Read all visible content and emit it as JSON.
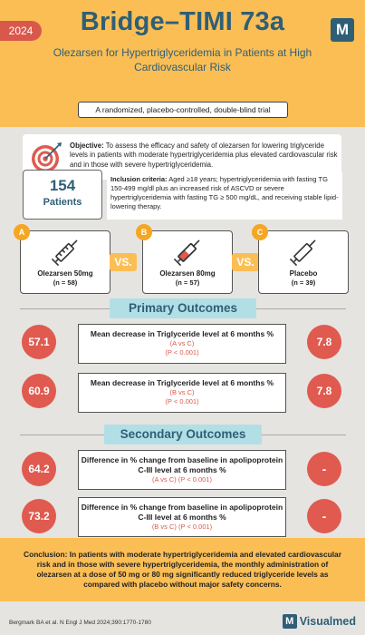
{
  "header": {
    "year": "2024",
    "title": "Bridge–TIMI 73a",
    "subtitle": "Olezarsen for Hypertriglyceridemia in Patients at High Cardiovascular Risk",
    "trial_design": "A randomized, placebo-controlled, double-blind trial",
    "logo_letter": "M"
  },
  "objective": {
    "label": "Objective:",
    "text": "To assess the efficacy and safety of olezarsen for lowering triglyceride levels in patients with moderate hypertriglyceridemia plus elevated cardiovascular risk and in those with severe hypertriglyceridemia.",
    "icon": "target-icon"
  },
  "patients": {
    "count": "154",
    "label": "Patients"
  },
  "inclusion": {
    "label": "Inclusion criteria:",
    "text": "Aged ≥18 years; hypertriglyceridemia with fasting TG 150-499 mg/dl plus an increased risk of ASCVD or severe hypertriglyceridemia with fasting TG ≥ 500 mg/dL, and receiving stable lipid-lowering therapy."
  },
  "arms": [
    {
      "badge": "A",
      "label": "Olezarsen 50mg",
      "n": "(n = 58)",
      "icon": "syringe-icon"
    },
    {
      "badge": "B",
      "label": "Olezarsen 80mg",
      "n": "(n = 57)",
      "icon": "syringe-icon"
    },
    {
      "badge": "C",
      "label": "Placebo",
      "n": "(n = 39)",
      "icon": "placebo-syringe-icon"
    }
  ],
  "vs_label": "VS.",
  "primary": {
    "heading": "Primary Outcomes",
    "rows": [
      {
        "left": "57.1",
        "title": "Mean decrease in Triglyceride level at 6 months %",
        "comparison": "(A vs C)",
        "p": "(P < 0.001)",
        "right": "7.8"
      },
      {
        "left": "60.9",
        "title": "Mean decrease in Triglyceride level at 6 months %",
        "comparison": "(B vs C)",
        "p": "(P < 0.001)",
        "right": "7.8"
      }
    ]
  },
  "secondary": {
    "heading": "Secondary Outcomes",
    "rows": [
      {
        "left": "64.2",
        "title": "Difference in % change from baseline in apolipoprotein C-III level at 6 months %",
        "comparison": "(A vs C)",
        "p": "(P < 0.001)",
        "right": "-"
      },
      {
        "left": "73.2",
        "title": "Difference in % change from baseline in apolipoprotein C-III level at 6 months %",
        "comparison": "(B vs C)",
        "p": "(P < 0.001)",
        "right": "-"
      }
    ]
  },
  "conclusion": {
    "label": "Conclusion:",
    "text": "In patients with moderate hypertriglyceridemia and elevated cardiovascular risk and in those with severe hypertriglyceridemia, the monthly administration of olezarsen at a dose of 50 mg or 80 mg significantly reduced triglyceride levels as compared with placebo without major safety concerns."
  },
  "footer": {
    "reference": "Bergmark BA et al. N Engl J Med 2024;390:1770-1780",
    "brand_letter": "M",
    "brand_name": "Visualmed"
  },
  "colors": {
    "header_bg": "#fbbe55",
    "title": "#2f5f76",
    "accent_red": "#e05a4f",
    "section_pill": "#b2dfe6",
    "vs_badge": "#fbbe55",
    "arm_badge": "#f5a623"
  }
}
